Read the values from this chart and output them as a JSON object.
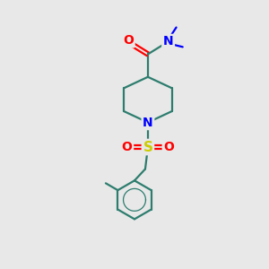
{
  "background_color": "#e8e8e8",
  "bond_color": "#2d7d6e",
  "atom_colors": {
    "O": "#ff0000",
    "N": "#0000ff",
    "S": "#cccc00",
    "C": "#2d7d6e"
  },
  "figsize": [
    3.0,
    3.0
  ],
  "dpi": 100,
  "lw": 1.6
}
